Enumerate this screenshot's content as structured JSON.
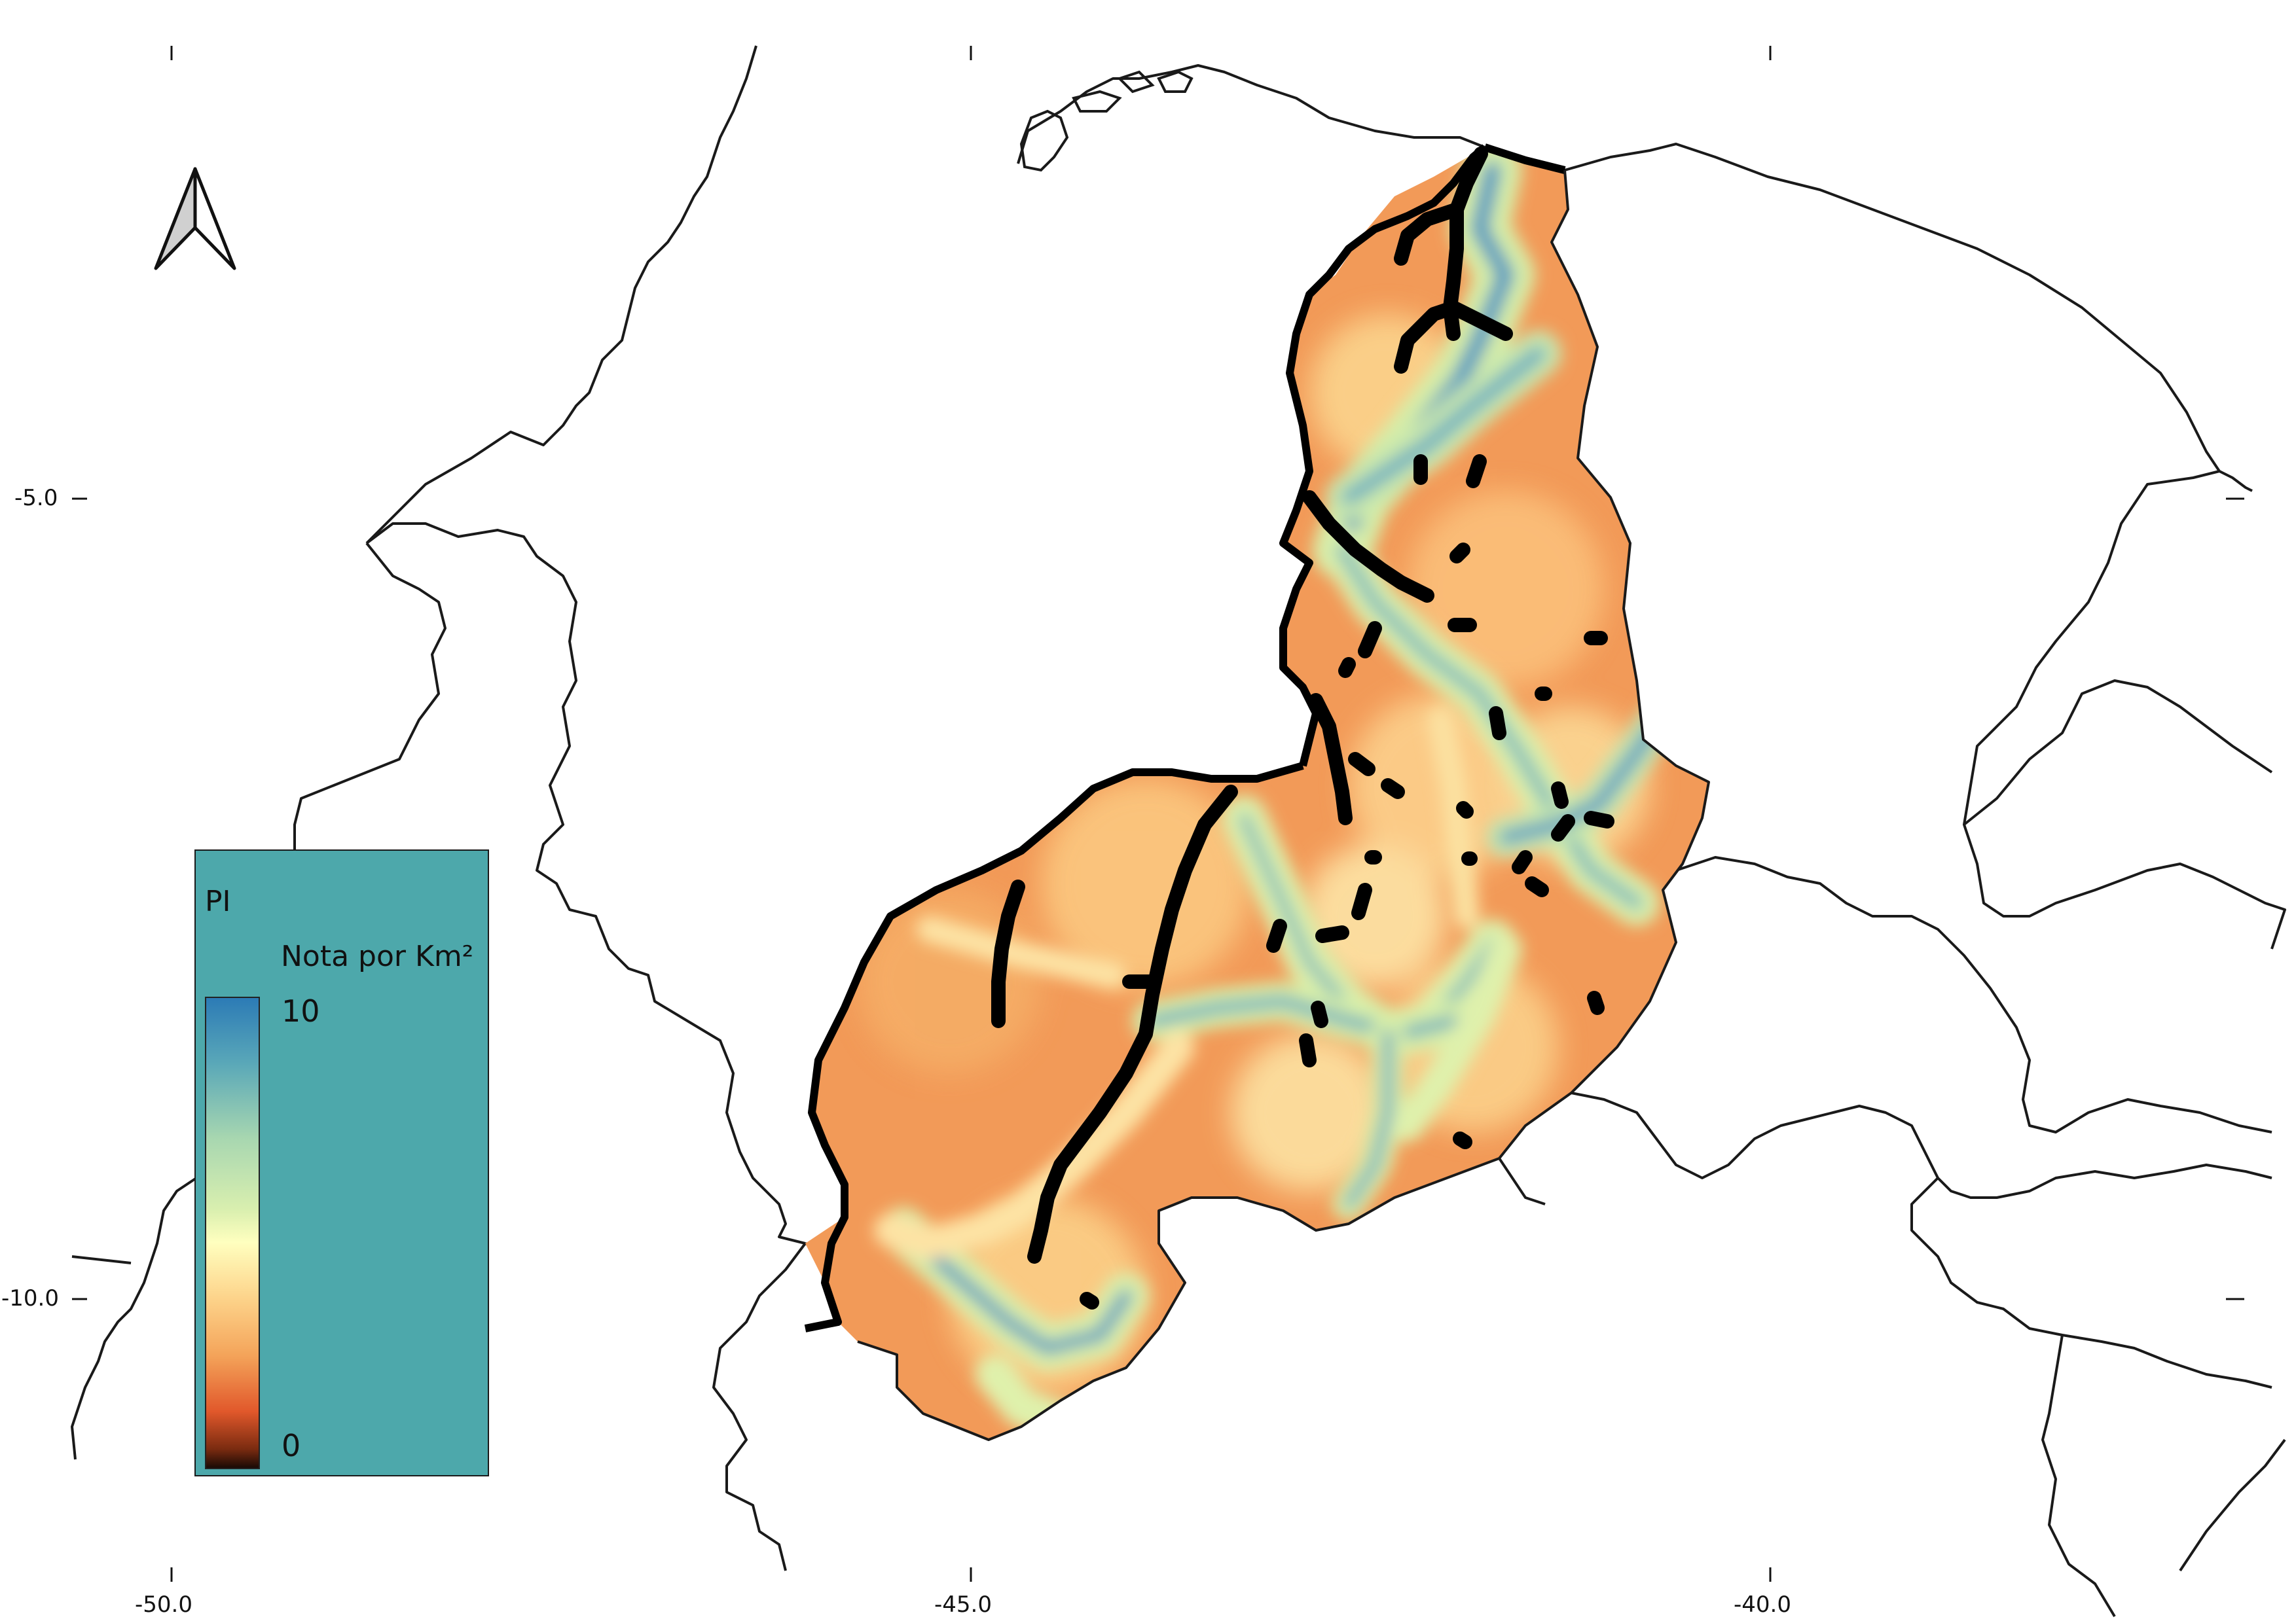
{
  "legend": {
    "title": "PI",
    "subtitle": "Nota por Km²",
    "max": "10",
    "min": "0",
    "ramp_colors": [
      "#2c7bb6",
      "#abdda4",
      "#ffffbf",
      "#fdae61",
      "#d7191c",
      "#1a0a05"
    ]
  },
  "axes": {
    "x_ticks": [
      "-50.0",
      "-45.0",
      "-40.0"
    ],
    "y_ticks": [
      "-5.0",
      "-10.0"
    ]
  },
  "icons": {
    "north_arrow": "north-arrow-icon"
  },
  "colors": {
    "legend_background": "#4da8ab",
    "suitability_low": "#f4a45a",
    "suitability_high": "#2c7bb6",
    "roads": "#000000",
    "borders": "#1a1a1a"
  }
}
